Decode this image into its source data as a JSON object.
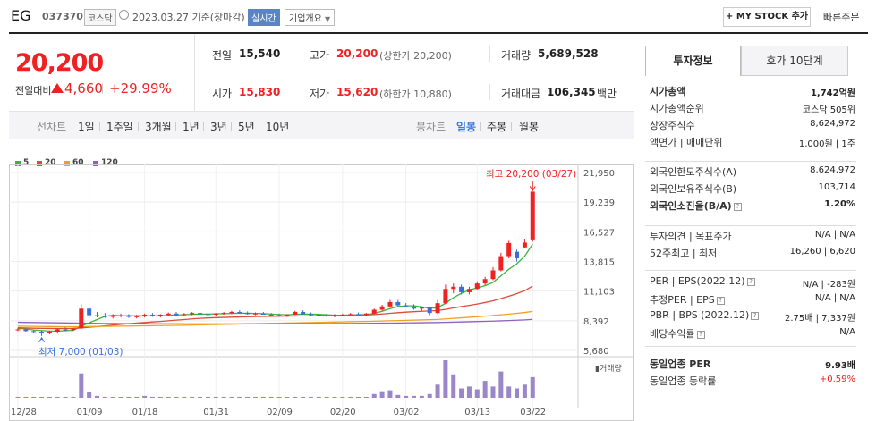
{
  "header": {
    "name": "EG",
    "code": "037370",
    "market": "코스닥",
    "date": "2023.03.27 기준(장마감)",
    "realtime": "실시간",
    "company_info": "기업개요",
    "my_stock": "+ MY STOCK 추가",
    "quick_order": "빠른주문"
  },
  "price": {
    "current": "20,200",
    "prev_label": "전일대비",
    "change": "4,660",
    "rate": "+29.99%"
  },
  "stats": {
    "prev_close_label": "전일",
    "prev_close": "15,540",
    "high_label": "고가",
    "high": "20,200",
    "upper_limit": "(상한가 20,200)",
    "volume_label": "거래량",
    "volume": "5,689,528",
    "open_label": "시가",
    "open": "15,830",
    "low_label": "저가",
    "low": "15,620",
    "lower_limit": "(하한가 10,880)",
    "amount_label": "거래대금",
    "amount": "106,345",
    "amount_unit": "백만"
  },
  "period": {
    "line_label": "선차트",
    "line_opts": [
      "1일",
      "1주일",
      "3개월",
      "1년",
      "3년",
      "5년",
      "10년"
    ],
    "candle_label": "봉차트",
    "candle_opts": [
      "일봉",
      "주봉",
      "월봉"
    ],
    "selected": "일봉"
  },
  "chart_data": {
    "type": "candlestick",
    "ma_legend": [
      {
        "name": "5",
        "color": "#3cb43c"
      },
      {
        "name": "20",
        "color": "#e04a3a"
      },
      {
        "name": "60",
        "color": "#f0a020"
      },
      {
        "name": "120",
        "color": "#9060c0"
      }
    ],
    "y_ticks": [
      "21,950",
      "19,239",
      "16,527",
      "13,815",
      "11,103",
      "8,392",
      "5,680"
    ],
    "y_tick_values": [
      21950,
      19239,
      16527,
      13815,
      11103,
      8392,
      5680
    ],
    "x_ticks": [
      "12/28",
      "01/09",
      "01/18",
      "01/31",
      "02/09",
      "02/20",
      "03/02",
      "03/13",
      "03/22"
    ],
    "high_annotation": "최고 20,200 (03/27)",
    "low_annotation": "최저 7,000 (01/03)",
    "volume_label": "거래량",
    "candles": [
      [
        7600,
        7750,
        7450,
        7600
      ],
      [
        7600,
        7700,
        7400,
        7450
      ],
      [
        7450,
        7550,
        7300,
        7400
      ],
      [
        7400,
        7500,
        7000,
        7250
      ],
      [
        7250,
        7500,
        7150,
        7400
      ],
      [
        7400,
        7700,
        7300,
        7600
      ],
      [
        7600,
        7800,
        7450,
        7550
      ],
      [
        7550,
        7700,
        7450,
        7650
      ],
      [
        7700,
        9900,
        7600,
        9500
      ],
      [
        9500,
        9700,
        8700,
        8900
      ],
      [
        8900,
        9200,
        8700,
        8850
      ],
      [
        8850,
        9100,
        8650,
        8750
      ],
      [
        8750,
        9000,
        8600,
        8850
      ],
      [
        8850,
        9050,
        8700,
        8900
      ],
      [
        8900,
        9000,
        8650,
        8750
      ],
      [
        8750,
        8950,
        8600,
        8800
      ],
      [
        8800,
        9050,
        8700,
        8950
      ],
      [
        8950,
        9100,
        8750,
        8800
      ],
      [
        8800,
        9000,
        8700,
        8950
      ],
      [
        8950,
        9150,
        8800,
        9050
      ],
      [
        9050,
        9200,
        8850,
        8900
      ],
      [
        8900,
        9100,
        8800,
        9000
      ],
      [
        9000,
        9200,
        8900,
        9100
      ],
      [
        9100,
        9250,
        8950,
        9000
      ],
      [
        9000,
        9150,
        8850,
        8950
      ],
      [
        8950,
        9100,
        8800,
        9050
      ],
      [
        9050,
        9200,
        8950,
        9100
      ],
      [
        9100,
        9300,
        9000,
        9200
      ],
      [
        9200,
        9350,
        9050,
        9100
      ],
      [
        9100,
        9250,
        8950,
        9000
      ],
      [
        9000,
        9150,
        8900,
        9050
      ],
      [
        9050,
        9200,
        8950,
        8950
      ],
      [
        8950,
        9100,
        8800,
        8900
      ],
      [
        8900,
        9050,
        8750,
        8850
      ],
      [
        8850,
        9000,
        8750,
        8950
      ],
      [
        8950,
        9300,
        8900,
        9200
      ],
      [
        9200,
        9350,
        8950,
        9000
      ],
      [
        9000,
        9150,
        8850,
        8950
      ],
      [
        8950,
        9100,
        8800,
        8900
      ],
      [
        8900,
        9050,
        8750,
        8850
      ],
      [
        8850,
        9000,
        8700,
        8900
      ],
      [
        8900,
        9050,
        8800,
        8950
      ],
      [
        8950,
        9100,
        8850,
        9000
      ],
      [
        9000,
        9150,
        8900,
        8950
      ],
      [
        8950,
        9100,
        8850,
        9050
      ],
      [
        9050,
        9500,
        9000,
        9400
      ],
      [
        9400,
        9850,
        9300,
        9700
      ],
      [
        9700,
        10300,
        9600,
        10100
      ],
      [
        10100,
        10300,
        9700,
        9800
      ],
      [
        9800,
        10000,
        9600,
        9700
      ],
      [
        9700,
        9900,
        9400,
        9500
      ],
      [
        9500,
        9700,
        9300,
        9600
      ],
      [
        9600,
        9700,
        8900,
        9100
      ],
      [
        9100,
        10300,
        9000,
        10000
      ],
      [
        10000,
        11700,
        9900,
        11300
      ],
      [
        11300,
        11800,
        10900,
        11500
      ],
      [
        11500,
        11700,
        10800,
        11000
      ],
      [
        11000,
        11500,
        10800,
        11300
      ],
      [
        11300,
        12000,
        11200,
        11800
      ],
      [
        11800,
        12400,
        11600,
        12200
      ],
      [
        12200,
        13300,
        12100,
        13000
      ],
      [
        13000,
        14600,
        12900,
        14300
      ],
      [
        14300,
        15700,
        14100,
        15500
      ],
      [
        14700,
        14900,
        13800,
        14100
      ],
      [
        15100,
        15900,
        15000,
        15540
      ],
      [
        15830,
        20200,
        15620,
        20200
      ]
    ],
    "ma5": [
      7700,
      7650,
      7550,
      7500,
      7450,
      7450,
      7480,
      7520,
      7900,
      8200,
      8500,
      8800,
      8900,
      8850,
      8850,
      8850,
      8850,
      8850,
      8850,
      8900,
      8920,
      8950,
      8980,
      9000,
      9000,
      9020,
      9040,
      9060,
      9080,
      9080,
      9060,
      9040,
      9000,
      8960,
      8940,
      8980,
      9000,
      9000,
      8980,
      8940,
      8900,
      8900,
      8920,
      8940,
      8960,
      9060,
      9260,
      9500,
      9700,
      9760,
      9760,
      9660,
      9540,
      9580,
      10000,
      10500,
      10900,
      11200,
      11400,
      11600,
      11900,
      12500,
      13100,
      13600,
      14300,
      15400
    ],
    "ma20": [
      7750,
      7730,
      7710,
      7700,
      7690,
      7680,
      7680,
      7690,
      7740,
      7800,
      7860,
      7930,
      8000,
      8060,
      8120,
      8180,
      8230,
      8280,
      8330,
      8390,
      8450,
      8500,
      8560,
      8610,
      8650,
      8680,
      8700,
      8720,
      8740,
      8760,
      8780,
      8790,
      8800,
      8810,
      8820,
      8830,
      8840,
      8850,
      8860,
      8870,
      8880,
      8890,
      8900,
      8910,
      8920,
      8960,
      9010,
      9070,
      9130,
      9180,
      9220,
      9260,
      9290,
      9330,
      9430,
      9560,
      9690,
      9800,
      9920,
      10060,
      10220,
      10420,
      10640,
      10870,
      11140,
      11560
    ],
    "ma60": [
      7900,
      7890,
      7880,
      7870,
      7860,
      7850,
      7840,
      7840,
      7850,
      7860,
      7870,
      7880,
      7890,
      7900,
      7910,
      7920,
      7930,
      7940,
      7950,
      7960,
      7970,
      7985,
      8000,
      8015,
      8030,
      8045,
      8060,
      8075,
      8090,
      8105,
      8120,
      8135,
      8150,
      8165,
      8180,
      8195,
      8210,
      8225,
      8240,
      8255,
      8270,
      8285,
      8300,
      8315,
      8330,
      8350,
      8370,
      8390,
      8410,
      8430,
      8450,
      8470,
      8490,
      8510,
      8560,
      8610,
      8660,
      8710,
      8760,
      8820,
      8880,
      8940,
      9000,
      9070,
      9150,
      9250
    ],
    "ma120": [
      8250,
      8240,
      8230,
      8220,
      8210,
      8200,
      8190,
      8180,
      8170,
      8160,
      8150,
      8145,
      8140,
      8135,
      8130,
      8125,
      8120,
      8115,
      8110,
      8108,
      8106,
      8104,
      8102,
      8100,
      8100,
      8100,
      8100,
      8102,
      8104,
      8106,
      8108,
      8110,
      8112,
      8114,
      8116,
      8118,
      8120,
      8124,
      8128,
      8132,
      8136,
      8140,
      8145,
      8150,
      8155,
      8160,
      8168,
      8176,
      8184,
      8192,
      8200,
      8210,
      8220,
      8230,
      8245,
      8260,
      8280,
      8300,
      8320,
      8340,
      8360,
      8385,
      8410,
      8440,
      8470,
      8520
    ],
    "volume": [
      1,
      1,
      1,
      1,
      1,
      1,
      1,
      1,
      26,
      6,
      2,
      1,
      1,
      1,
      1,
      1,
      2,
      1,
      1,
      1,
      1,
      1,
      1,
      1,
      1,
      1,
      1,
      1,
      1,
      1,
      1,
      1,
      1,
      1,
      1,
      1,
      1,
      1,
      1,
      1,
      1,
      1,
      1,
      1,
      1,
      4,
      7,
      8,
      3,
      2,
      2,
      2,
      4,
      14,
      40,
      25,
      10,
      12,
      9,
      18,
      12,
      28,
      12,
      10,
      14,
      22
    ],
    "ylim": [
      5680,
      21950
    ]
  },
  "panel": {
    "tab_invest": "투자정보",
    "tab_orderbook": "호가 10단계",
    "rows1": [
      {
        "k": "시가총액",
        "v": "1,742억원"
      },
      {
        "k": "시가총액순위",
        "v": "코스닥 505위"
      },
      {
        "k": "상장주식수",
        "v": "8,624,972"
      },
      {
        "k": "액면가 | 매매단위",
        "v": "1,000원 | 1주"
      }
    ],
    "rows2": [
      {
        "k": "외국인한도주식수(A)",
        "v": "8,624,972"
      },
      {
        "k": "외국인보유주식수(B)",
        "v": "103,714"
      },
      {
        "k": "외국인소진율(B/A)",
        "v": "1.20%"
      }
    ],
    "rows3": [
      {
        "k": "투자의견 | 목표주가",
        "v": "N/A | N/A"
      },
      {
        "k": "52주최고 | 최저",
        "v": "16,260 | 6,620"
      }
    ],
    "rows4": [
      {
        "k": "PER | EPS(2022.12)",
        "v": "N/A | -283원"
      },
      {
        "k": "추정PER | EPS",
        "v": "N/A | N/A"
      },
      {
        "k": "PBR | BPS (2022.12)",
        "v": "2.75배 | 7,337원"
      },
      {
        "k": "배당수익률",
        "v": "N/A"
      }
    ],
    "rows5": [
      {
        "k": "동일업종 PER",
        "v": "9.93배"
      },
      {
        "k": "동일업종 등락률",
        "v": "+0.59%"
      }
    ]
  }
}
